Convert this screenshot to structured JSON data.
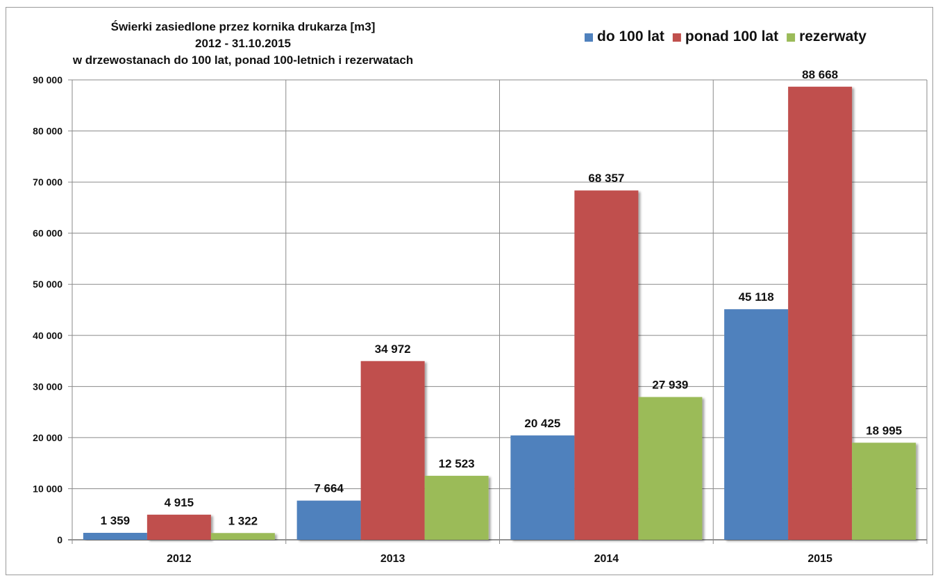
{
  "chart_data": {
    "type": "bar",
    "title": [
      "Świerki zasiedlone przez kornika drukarza [m3]",
      "2012 - 31.10.2015",
      "w drzewostanach do 100 lat, ponad 100-letnich i rezerwatach"
    ],
    "categories": [
      "2012",
      "2013",
      "2014",
      "2015"
    ],
    "series": [
      {
        "name": "do 100 lat",
        "color": "#4f81bd",
        "values": [
          1359,
          7664,
          20425,
          45118
        ],
        "labels": [
          "1 359",
          "7 664",
          "20 425",
          "45 118"
        ]
      },
      {
        "name": "ponad 100 lat",
        "color": "#c0504d",
        "values": [
          4915,
          34972,
          68357,
          88668
        ],
        "labels": [
          "4 915",
          "34 972",
          "68 357",
          "88 668"
        ]
      },
      {
        "name": "rezerwaty",
        "color": "#9bbb59",
        "values": [
          1322,
          12523,
          27939,
          18995
        ],
        "labels": [
          "1 322",
          "12 523",
          "27 939",
          "18 995"
        ]
      }
    ],
    "ylim": [
      0,
      90000
    ],
    "yticks": [
      "0",
      "10 000",
      "20 000",
      "30 000",
      "40 000",
      "50 000",
      "60 000",
      "70 000",
      "80 000",
      "90 000"
    ],
    "grid": true,
    "legend_position": "top-right"
  }
}
